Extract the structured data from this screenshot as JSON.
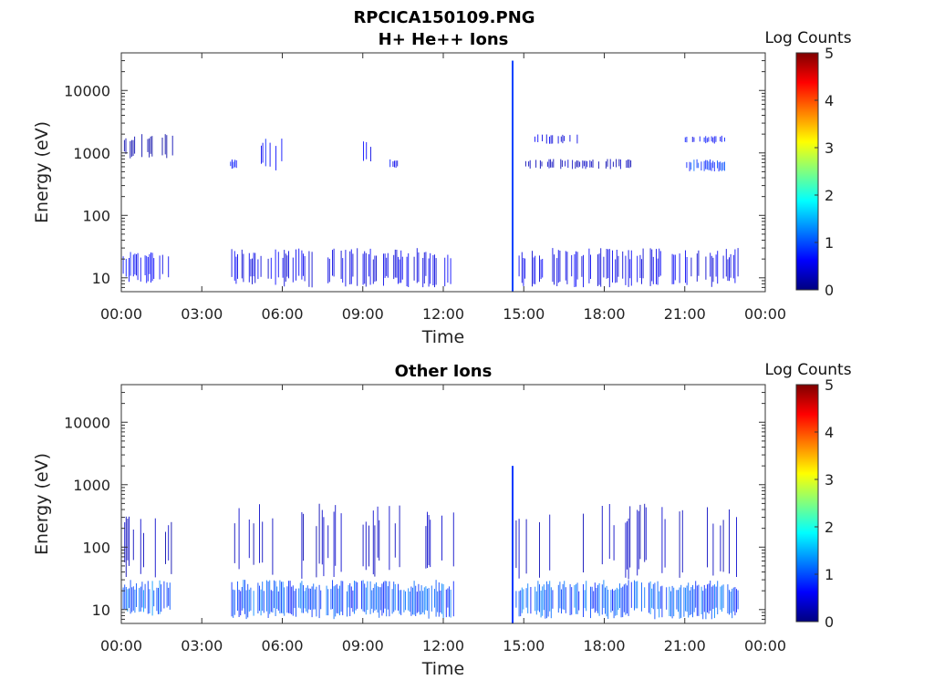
{
  "figure": {
    "filename": "RPCICA150109.PNG",
    "colorbar_label": "Log Counts",
    "colormap": [
      "#00007f",
      "#0000ff",
      "#00ffff",
      "#ffff00",
      "#ff0000",
      "#7f0000"
    ]
  },
  "chart_data": [
    {
      "type": "heatmap",
      "title": "H+ He++ Ions",
      "xlabel": "Time",
      "ylabel": "Energy (eV)",
      "yscale": "log",
      "ylim": [
        6,
        40000
      ],
      "xlim_hours": [
        0,
        24
      ],
      "xticks": [
        "00:00",
        "03:00",
        "06:00",
        "09:00",
        "12:00",
        "15:00",
        "18:00",
        "21:00",
        "00:00"
      ],
      "yticks": [
        "10",
        "100",
        "1000",
        "10000"
      ],
      "colorbar": {
        "label": "Log Counts",
        "range": [
          0,
          5
        ],
        "ticks": [
          "0",
          "1",
          "2",
          "3",
          "4",
          "5"
        ]
      },
      "segments": [
        {
          "t_start_hours": 0.0,
          "t_end_hours": 1.9,
          "e_low": 8,
          "e_high": 28,
          "level": 0.6
        },
        {
          "t_start_hours": 0.1,
          "t_end_hours": 1.9,
          "e_low": 800,
          "e_high": 2000,
          "level": 0.2
        },
        {
          "t_start_hours": 4.1,
          "t_end_hours": 12.4,
          "e_low": 7,
          "e_high": 30,
          "level": 0.5
        },
        {
          "t_start_hours": 4.0,
          "t_end_hours": 4.3,
          "e_low": 550,
          "e_high": 800,
          "level": 0.7
        },
        {
          "t_start_hours": 5.2,
          "t_end_hours": 6.0,
          "e_low": 500,
          "e_high": 1900,
          "level": 0.6
        },
        {
          "t_start_hours": 8.9,
          "t_end_hours": 9.3,
          "e_low": 600,
          "e_high": 1700,
          "level": 0.5
        },
        {
          "t_start_hours": 10.0,
          "t_end_hours": 10.3,
          "e_low": 550,
          "e_high": 800,
          "level": 0.6
        },
        {
          "t_start_hours": 14.55,
          "t_end_hours": 14.6,
          "e_low": 6,
          "e_high": 30000,
          "level": 0.95
        },
        {
          "t_start_hours": 14.7,
          "t_end_hours": 23.0,
          "e_low": 7,
          "e_high": 30,
          "level": 0.5
        },
        {
          "t_start_hours": 15.4,
          "t_end_hours": 17.0,
          "e_low": 1400,
          "e_high": 2000,
          "level": 0.5
        },
        {
          "t_start_hours": 15.0,
          "t_end_hours": 19.0,
          "e_low": 550,
          "e_high": 800,
          "level": 0.3
        },
        {
          "t_start_hours": 21.0,
          "t_end_hours": 22.5,
          "e_low": 500,
          "e_high": 800,
          "level": 0.9
        },
        {
          "t_start_hours": 21.0,
          "t_end_hours": 22.5,
          "e_low": 1400,
          "e_high": 1900,
          "level": 0.6
        }
      ]
    },
    {
      "type": "heatmap",
      "title": "Other Ions",
      "xlabel": "Time",
      "ylabel": "Energy (eV)",
      "yscale": "log",
      "ylim": [
        6,
        40000
      ],
      "xlim_hours": [
        0,
        24
      ],
      "xticks": [
        "00:00",
        "03:00",
        "06:00",
        "09:00",
        "12:00",
        "15:00",
        "18:00",
        "21:00",
        "00:00"
      ],
      "yticks": [
        "10",
        "100",
        "1000",
        "10000"
      ],
      "colorbar": {
        "label": "Log Counts",
        "range": [
          0,
          5
        ],
        "ticks": [
          "0",
          "1",
          "2",
          "3",
          "4",
          "5"
        ]
      },
      "segments": [
        {
          "t_start_hours": 0.0,
          "t_end_hours": 1.9,
          "e_low": 8,
          "e_high": 30,
          "level": 1.1
        },
        {
          "t_start_hours": 0.0,
          "t_end_hours": 1.9,
          "e_low": 30,
          "e_high": 350,
          "level": 0.3
        },
        {
          "t_start_hours": 4.1,
          "t_end_hours": 12.4,
          "e_low": 7,
          "e_high": 30,
          "level": 1.0
        },
        {
          "t_start_hours": 4.1,
          "t_end_hours": 12.4,
          "e_low": 30,
          "e_high": 500,
          "level": 0.3
        },
        {
          "t_start_hours": 14.55,
          "t_end_hours": 14.6,
          "e_low": 6,
          "e_high": 2000,
          "level": 0.9
        },
        {
          "t_start_hours": 14.7,
          "t_end_hours": 23.0,
          "e_low": 7,
          "e_high": 30,
          "level": 1.0
        },
        {
          "t_start_hours": 14.7,
          "t_end_hours": 23.0,
          "e_low": 30,
          "e_high": 500,
          "level": 0.3
        }
      ]
    }
  ]
}
